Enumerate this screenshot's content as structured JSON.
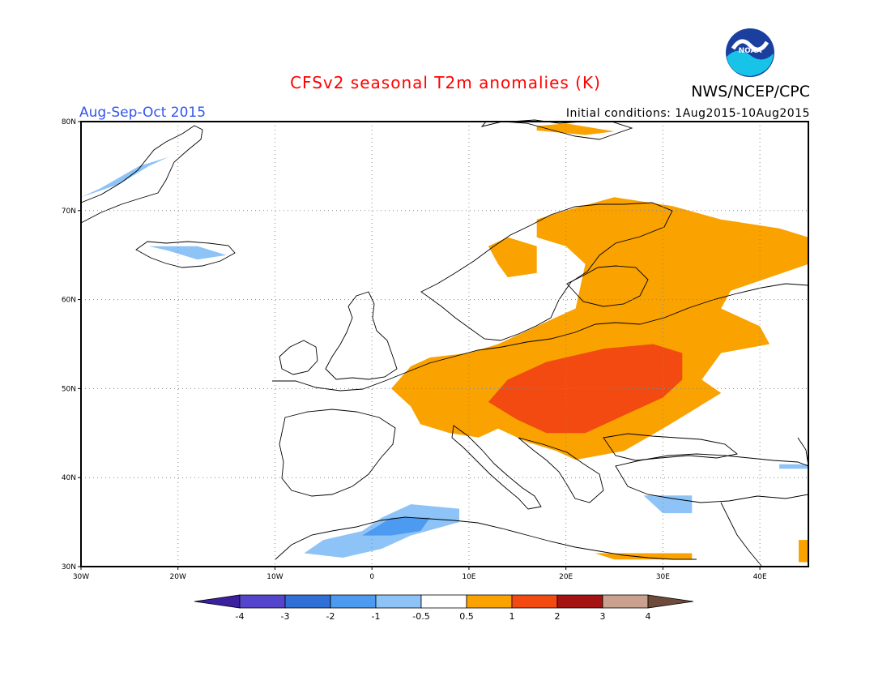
{
  "header": {
    "title": "CFSv2 seasonal T2m anomalies (K)",
    "title_color": "#ff0000",
    "org": "NWS/NCEP/CPC",
    "season": "Aug-Sep-Oct 2015",
    "season_color": "#3355ee",
    "initial_conditions": "Initial conditions: 1Aug2015-10Aug2015",
    "logo_label": "NOAA"
  },
  "map": {
    "lon_range": [
      -30,
      45
    ],
    "lat_range": [
      30,
      80
    ],
    "gridlines": "dotted",
    "lon_ticks": [
      "30W",
      "20W",
      "10W",
      "0",
      "10E",
      "20E",
      "30E",
      "40E"
    ],
    "lat_ticks": [
      "80N",
      "70N",
      "60N",
      "50N",
      "40N",
      "30N"
    ]
  },
  "colorbar": {
    "labels": [
      "-4",
      "-3",
      "-2",
      "-1",
      "-0.5",
      "0.5",
      "1",
      "2",
      "3",
      "4"
    ],
    "colors": [
      "#3a1f9e",
      "#5544cc",
      "#2f6fd6",
      "#4d9bf0",
      "#8ec3f7",
      "#ffffff",
      "#f9a200",
      "#f24a10",
      "#a51212",
      "#c9a18e",
      "#6e4a3a"
    ]
  },
  "anomaly_regions": [
    {
      "name": "central-eastern-europe-warm",
      "level": "1 to 2",
      "color": "#f24a10"
    },
    {
      "name": "eastern-europe-russia-warm",
      "level": "0.5 to 1",
      "color": "#f9a200"
    },
    {
      "name": "north-africa-cool",
      "level": "-1 to -0.5",
      "color": "#8ec3f7"
    },
    {
      "name": "iceland-greenland-cool",
      "level": "-1 to -0.5",
      "color": "#8ec3f7"
    }
  ]
}
